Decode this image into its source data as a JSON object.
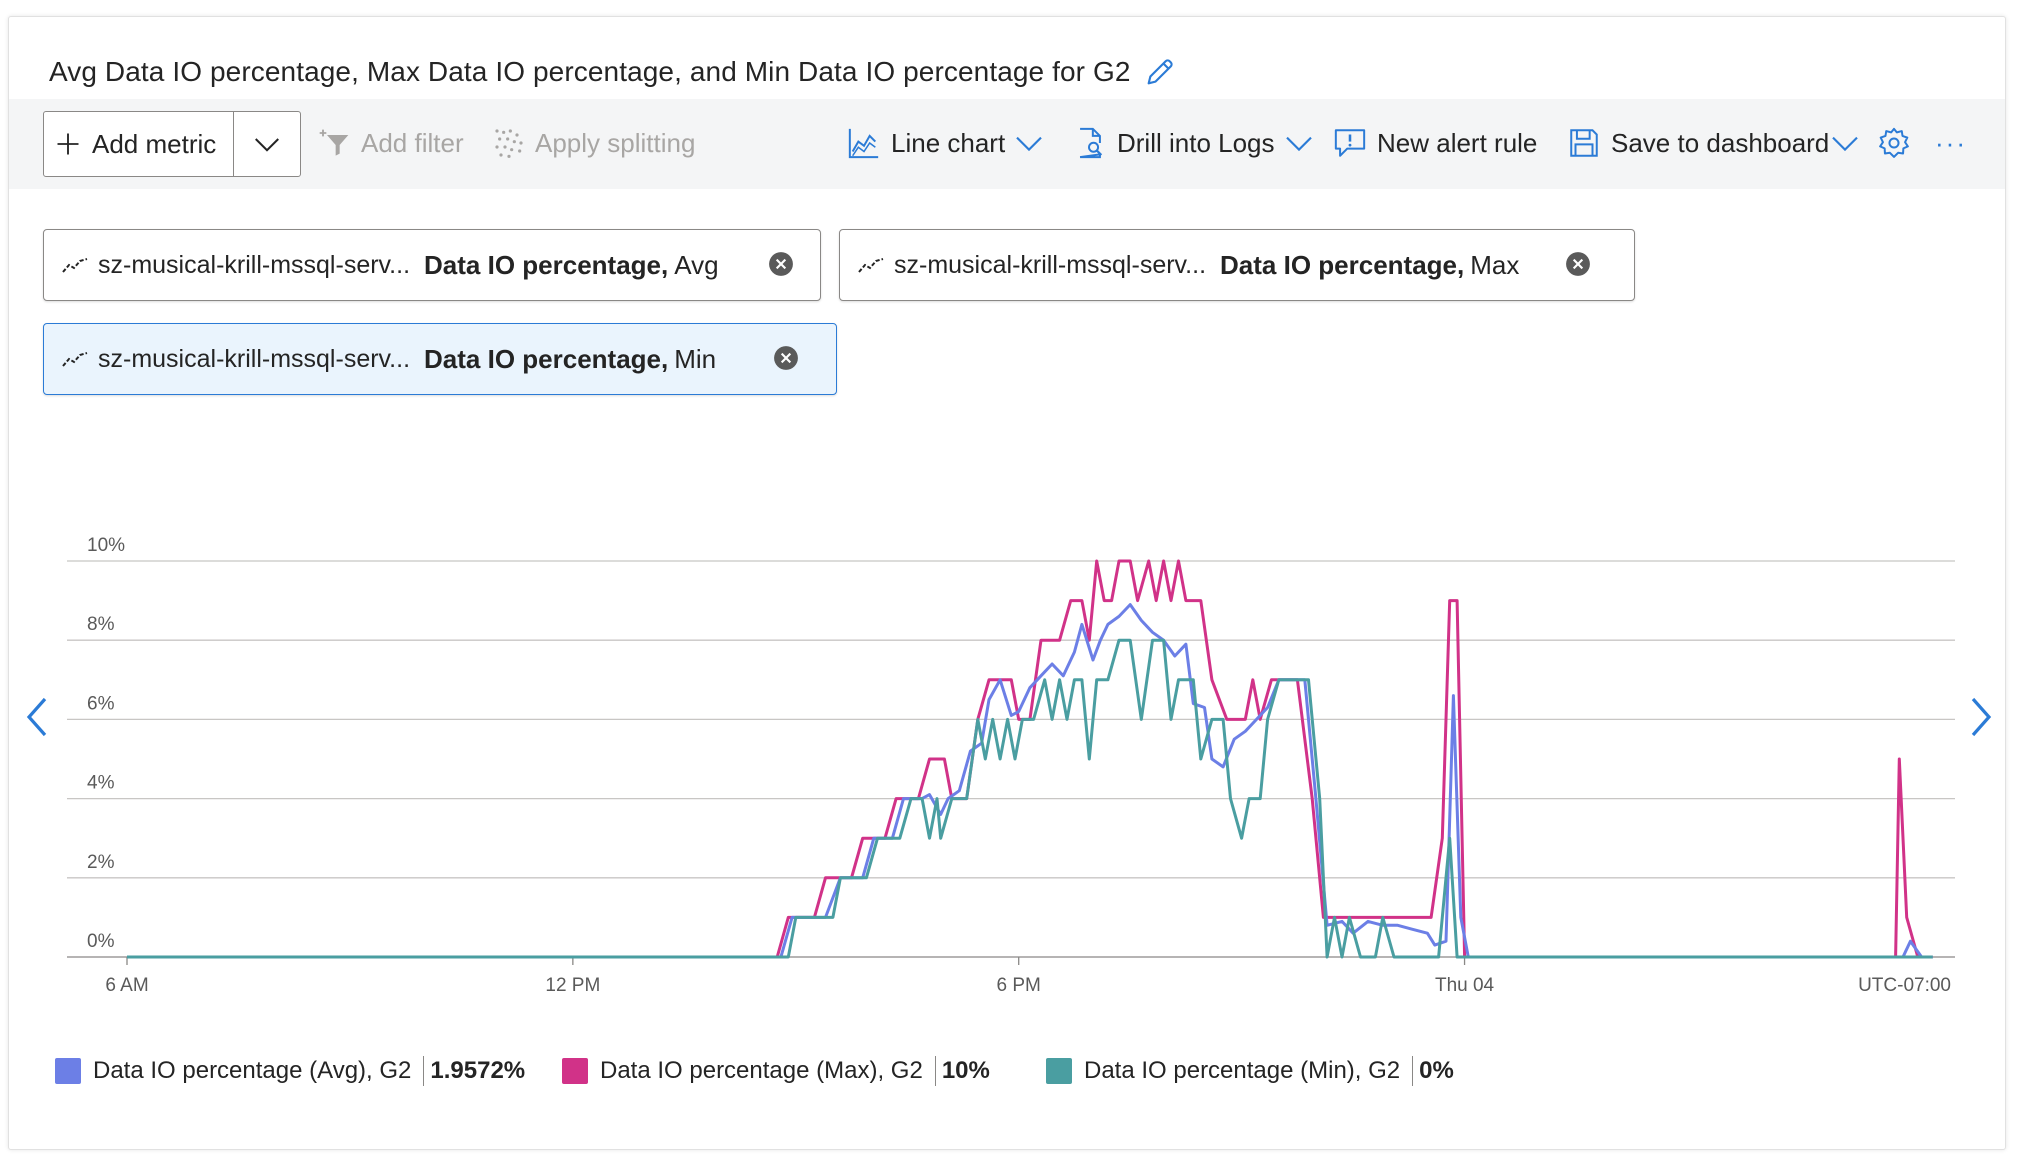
{
  "title": "Avg Data IO percentage, Max Data IO percentage, and Min Data IO percentage for G2",
  "toolbar": {
    "add_metric": "Add metric",
    "add_filter": "Add filter",
    "apply_splitting": "Apply splitting",
    "line_chart": "Line chart",
    "drill_into_logs": "Drill into Logs",
    "new_alert_rule": "New alert rule",
    "save_to_dashboard": "Save to dashboard",
    "more": "···"
  },
  "pills": [
    {
      "resource": "sz-musical-krill-mssql-serv...",
      "metric": "Data IO percentage,",
      "aggregation": "Avg"
    },
    {
      "resource": "sz-musical-krill-mssql-serv...",
      "metric": "Data IO percentage,",
      "aggregation": "Max"
    },
    {
      "resource": "sz-musical-krill-mssql-serv...",
      "metric": "Data IO percentage,",
      "aggregation": "Min"
    }
  ],
  "colors": {
    "avg": "#6c7fe6",
    "max": "#d13288",
    "min": "#4a9ea1",
    "accent": "#2b7bd6"
  },
  "chart_data": {
    "type": "line",
    "title": "",
    "x_tick_labels": [
      "6 AM",
      "12 PM",
      "6 PM",
      "Thu 04"
    ],
    "x_tick_hours": [
      6,
      12,
      18,
      24
    ],
    "timezone_label": "UTC-07:00",
    "y_tick_labels": [
      "0%",
      "2%",
      "4%",
      "6%",
      "8%",
      "10%"
    ],
    "ylim": [
      0,
      10
    ],
    "xlim": [
      6,
      30.6
    ],
    "grid": true,
    "legend_position": "bottom",
    "series": [
      {
        "name": "Data IO percentage (Avg), G2",
        "key": "avg",
        "summary": "1.9572%",
        "points": [
          [
            6,
            0
          ],
          [
            14.8,
            0
          ],
          [
            14.95,
            1
          ],
          [
            15.2,
            1
          ],
          [
            15.4,
            1
          ],
          [
            15.6,
            2
          ],
          [
            15.9,
            2
          ],
          [
            16.05,
            3
          ],
          [
            16.3,
            3
          ],
          [
            16.45,
            4
          ],
          [
            16.7,
            4
          ],
          [
            16.8,
            4.1
          ],
          [
            16.95,
            3.6
          ],
          [
            17.05,
            4
          ],
          [
            17.2,
            4.2
          ],
          [
            17.35,
            5.2
          ],
          [
            17.5,
            5.4
          ],
          [
            17.6,
            6.5
          ],
          [
            17.75,
            7
          ],
          [
            17.9,
            6.1
          ],
          [
            18.0,
            6.2
          ],
          [
            18.15,
            6.8
          ],
          [
            18.3,
            7.1
          ],
          [
            18.45,
            7.4
          ],
          [
            18.6,
            7.1
          ],
          [
            18.75,
            7.7
          ],
          [
            18.85,
            8.4
          ],
          [
            19.0,
            7.5
          ],
          [
            19.1,
            8.0
          ],
          [
            19.2,
            8.4
          ],
          [
            19.35,
            8.6
          ],
          [
            19.5,
            8.9
          ],
          [
            19.65,
            8.5
          ],
          [
            19.8,
            8.2
          ],
          [
            19.95,
            8.0
          ],
          [
            20.1,
            7.6
          ],
          [
            20.25,
            7.9
          ],
          [
            20.35,
            6.4
          ],
          [
            20.5,
            6.3
          ],
          [
            20.6,
            5.0
          ],
          [
            20.75,
            4.8
          ],
          [
            20.9,
            5.5
          ],
          [
            21.05,
            5.7
          ],
          [
            21.2,
            6.0
          ],
          [
            21.35,
            6.3
          ],
          [
            21.5,
            7.0
          ],
          [
            21.7,
            7.0
          ],
          [
            21.85,
            7.0
          ],
          [
            22.0,
            4.0
          ],
          [
            22.15,
            0.8
          ],
          [
            22.35,
            0.9
          ],
          [
            22.5,
            0.6
          ],
          [
            22.7,
            0.9
          ],
          [
            22.9,
            0.8
          ],
          [
            23.1,
            0.8
          ],
          [
            23.3,
            0.7
          ],
          [
            23.5,
            0.6
          ],
          [
            23.6,
            0.3
          ],
          [
            23.75,
            0.4
          ],
          [
            23.85,
            6.6
          ],
          [
            23.95,
            1.0
          ],
          [
            24.05,
            0
          ],
          [
            29.9,
            0
          ],
          [
            30.0,
            0.4
          ],
          [
            30.15,
            0
          ],
          [
            30.3,
            0
          ]
        ]
      },
      {
        "name": "Data IO percentage (Max), G2",
        "key": "max",
        "summary": "10%",
        "points": [
          [
            6,
            0
          ],
          [
            14.75,
            0
          ],
          [
            14.9,
            1
          ],
          [
            15.25,
            1
          ],
          [
            15.4,
            2
          ],
          [
            15.75,
            2
          ],
          [
            15.9,
            3
          ],
          [
            16.2,
            3
          ],
          [
            16.35,
            4
          ],
          [
            16.65,
            4
          ],
          [
            16.8,
            5
          ],
          [
            17.0,
            5
          ],
          [
            17.1,
            4
          ],
          [
            17.3,
            4
          ],
          [
            17.45,
            6
          ],
          [
            17.6,
            7
          ],
          [
            17.9,
            7
          ],
          [
            18.0,
            6
          ],
          [
            18.15,
            6
          ],
          [
            18.3,
            8
          ],
          [
            18.55,
            8
          ],
          [
            18.7,
            9
          ],
          [
            18.85,
            9
          ],
          [
            18.95,
            8
          ],
          [
            19.05,
            10
          ],
          [
            19.15,
            9
          ],
          [
            19.25,
            9
          ],
          [
            19.35,
            10
          ],
          [
            19.5,
            10
          ],
          [
            19.6,
            9
          ],
          [
            19.75,
            10
          ],
          [
            19.85,
            9
          ],
          [
            19.95,
            10
          ],
          [
            20.05,
            9
          ],
          [
            20.15,
            10
          ],
          [
            20.25,
            9
          ],
          [
            20.45,
            9
          ],
          [
            20.6,
            7
          ],
          [
            20.8,
            6
          ],
          [
            21.05,
            6
          ],
          [
            21.15,
            7
          ],
          [
            21.25,
            6
          ],
          [
            21.4,
            7
          ],
          [
            21.55,
            7
          ],
          [
            21.75,
            7
          ],
          [
            21.95,
            4
          ],
          [
            22.1,
            1
          ],
          [
            22.6,
            1
          ],
          [
            23.0,
            1
          ],
          [
            23.25,
            1
          ],
          [
            23.5,
            1
          ],
          [
            23.55,
            1
          ],
          [
            23.7,
            3
          ],
          [
            23.8,
            9
          ],
          [
            23.9,
            9
          ],
          [
            24.0,
            0
          ],
          [
            29.8,
            0
          ],
          [
            29.85,
            5
          ],
          [
            29.95,
            1
          ],
          [
            30.1,
            0
          ],
          [
            30.3,
            0
          ]
        ]
      },
      {
        "name": "Data IO percentage (Min), G2",
        "key": "min",
        "summary": "0%",
        "points": [
          [
            6,
            0
          ],
          [
            14.9,
            0
          ],
          [
            15.0,
            1
          ],
          [
            15.5,
            1
          ],
          [
            15.6,
            2
          ],
          [
            15.95,
            2
          ],
          [
            16.1,
            3
          ],
          [
            16.4,
            3
          ],
          [
            16.55,
            4
          ],
          [
            16.7,
            4
          ],
          [
            16.8,
            3
          ],
          [
            16.9,
            4
          ],
          [
            16.95,
            3
          ],
          [
            17.1,
            4
          ],
          [
            17.3,
            4
          ],
          [
            17.45,
            6
          ],
          [
            17.55,
            5
          ],
          [
            17.65,
            6
          ],
          [
            17.75,
            5
          ],
          [
            17.85,
            6
          ],
          [
            17.95,
            5
          ],
          [
            18.05,
            6
          ],
          [
            18.2,
            6
          ],
          [
            18.35,
            7
          ],
          [
            18.45,
            6
          ],
          [
            18.55,
            7
          ],
          [
            18.65,
            6
          ],
          [
            18.75,
            7
          ],
          [
            18.85,
            7
          ],
          [
            18.95,
            5
          ],
          [
            19.05,
            7
          ],
          [
            19.2,
            7
          ],
          [
            19.35,
            8
          ],
          [
            19.5,
            8
          ],
          [
            19.65,
            6
          ],
          [
            19.8,
            8
          ],
          [
            19.95,
            8
          ],
          [
            20.05,
            6
          ],
          [
            20.15,
            7
          ],
          [
            20.35,
            7
          ],
          [
            20.45,
            5
          ],
          [
            20.6,
            6
          ],
          [
            20.75,
            6
          ],
          [
            20.85,
            4
          ],
          [
            21.0,
            3
          ],
          [
            21.1,
            4
          ],
          [
            21.25,
            4
          ],
          [
            21.35,
            6
          ],
          [
            21.5,
            7
          ],
          [
            21.7,
            7
          ],
          [
            21.9,
            7
          ],
          [
            22.05,
            4
          ],
          [
            22.15,
            0
          ],
          [
            22.25,
            1
          ],
          [
            22.35,
            0
          ],
          [
            22.45,
            1
          ],
          [
            22.6,
            0
          ],
          [
            22.8,
            0
          ],
          [
            22.9,
            1
          ],
          [
            23.05,
            0
          ],
          [
            23.5,
            0
          ],
          [
            23.65,
            0
          ],
          [
            23.8,
            3
          ],
          [
            23.9,
            0
          ],
          [
            30.3,
            0
          ]
        ]
      }
    ]
  }
}
